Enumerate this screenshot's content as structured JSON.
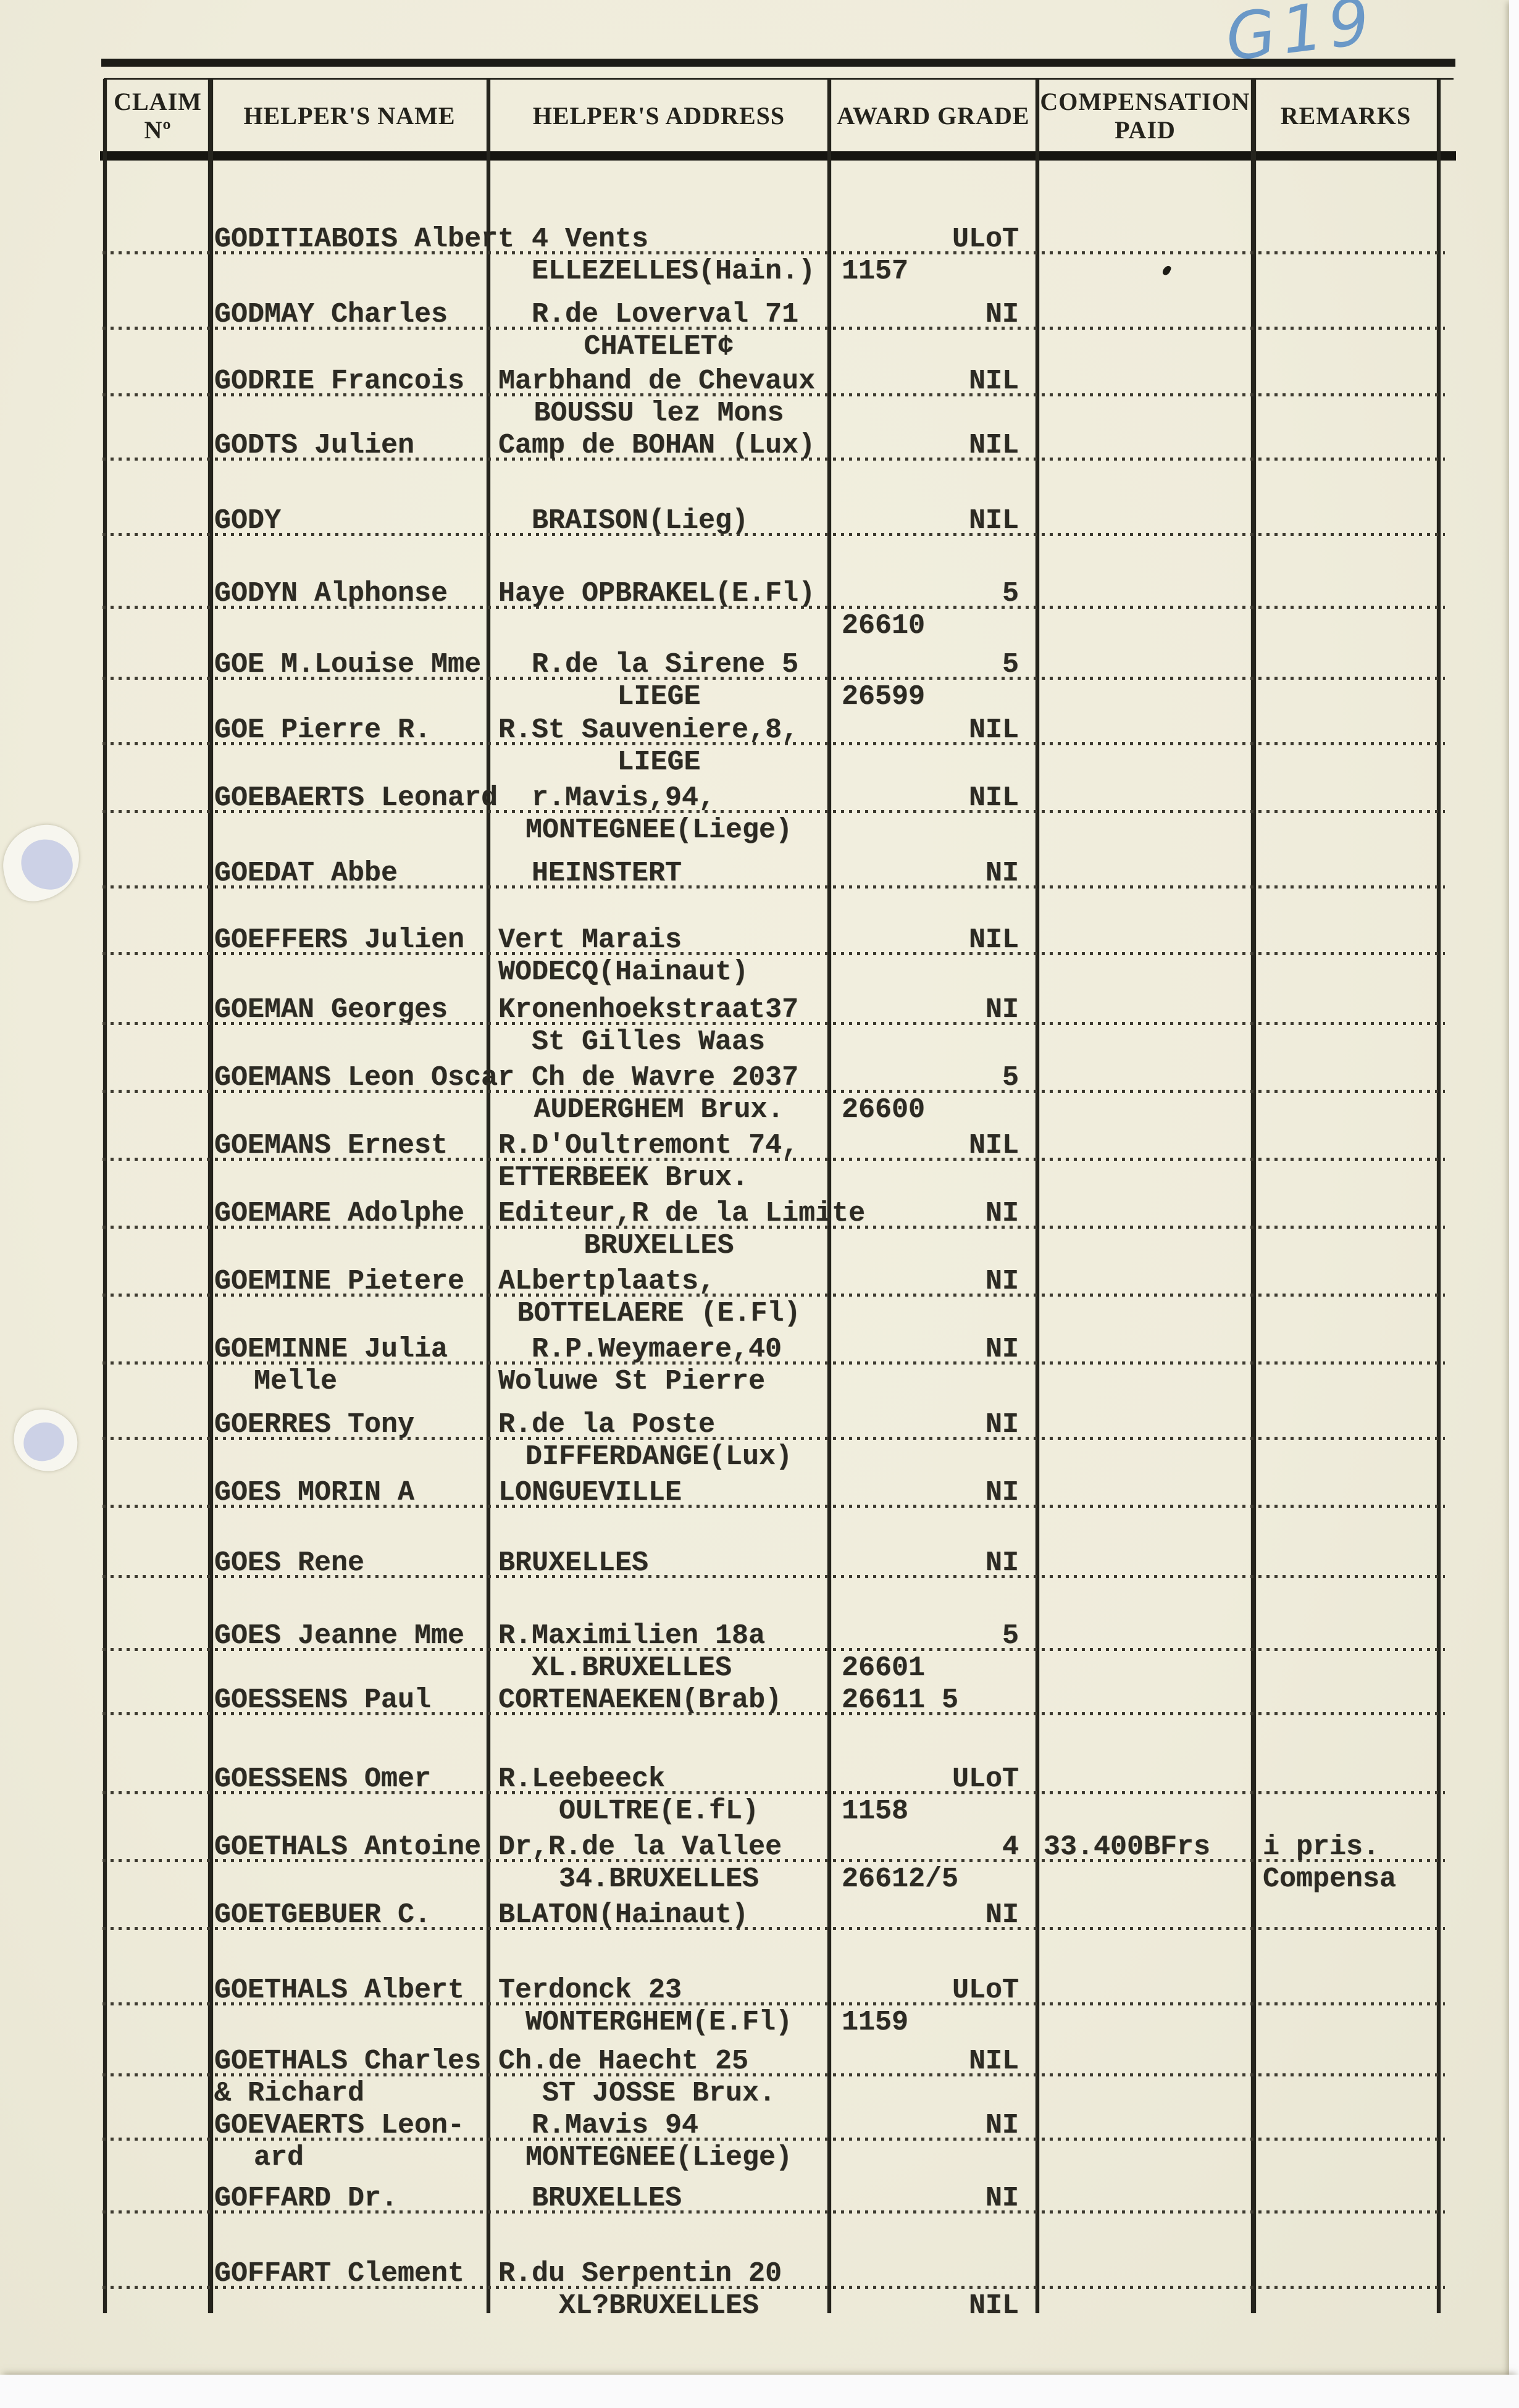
{
  "page": {
    "handwritten_note": "G19"
  },
  "header": {
    "columns": [
      {
        "lines": [
          "CLAIM",
          "Nº"
        ]
      },
      {
        "lines": [
          "HELPER'S NAME"
        ]
      },
      {
        "lines": [
          "HELPER'S ADDRESS"
        ]
      },
      {
        "lines": [
          "AWARD GRADE"
        ]
      },
      {
        "lines": [
          "COMPENSATION",
          "PAID"
        ]
      },
      {
        "lines": [
          "REMARKS"
        ]
      }
    ]
  },
  "table": {
    "rows": [
      {
        "mt": 104,
        "name": [
          {
            "t": "GODITIABOIS Albert",
            "a": "l"
          }
        ],
        "addr": [
          {
            "t": "4 Vents",
            "a": "i"
          },
          {
            "t": "ELLEZELLES(Hain.)",
            "a": "i"
          }
        ],
        "award": [
          {
            "t": "ULoT",
            "a": "r"
          },
          {
            "t": "1157",
            "a": "l"
          }
        ],
        "comp": [],
        "remarks": []
      },
      {
        "mt": 18,
        "name": [
          {
            "t": "GODMAY Charles",
            "a": "l"
          }
        ],
        "addr": [
          {
            "t": "R.de Loverval 71",
            "a": "i"
          },
          {
            "t": "CHATELET¢",
            "a": "c"
          }
        ],
        "award": [
          {
            "t": "NI",
            "a": "r"
          }
        ],
        "comp": [],
        "remarks": []
      },
      {
        "mt": 4,
        "name": [
          {
            "t": "GODRIE Francois",
            "a": "l"
          }
        ],
        "addr": [
          {
            "t": "Marbhand de Chevaux",
            "a": "l"
          },
          {
            "t": "BOUSSU lez Mons",
            "a": "c"
          }
        ],
        "award": [
          {
            "t": "NIL",
            "a": "r"
          }
        ],
        "comp": [],
        "remarks": []
      },
      {
        "mt": 0,
        "name": [
          {
            "t": "GODTS Julien",
            "a": "l"
          }
        ],
        "addr": [
          {
            "t": "Camp de BOHAN (Lux)",
            "a": "l"
          }
        ],
        "award": [
          {
            "t": "NIL",
            "a": "r"
          }
        ],
        "comp": [],
        "remarks": []
      },
      {
        "mt": 70,
        "name": [
          {
            "t": "GODY",
            "a": "l"
          }
        ],
        "addr": [
          {
            "t": "BRAISON(Lieg)",
            "a": "i"
          }
        ],
        "award": [
          {
            "t": "NIL",
            "a": "r"
          }
        ],
        "comp": [],
        "remarks": []
      },
      {
        "mt": 66,
        "name": [
          {
            "t": "GODYN Alphonse",
            "a": "l"
          }
        ],
        "addr": [
          {
            "t": "Haye OPBRAKEL(E.Fl)",
            "a": "l"
          }
        ],
        "award": [
          {
            "t": "5",
            "a": "r"
          },
          {
            "t": "26610",
            "a": "l"
          }
        ],
        "comp": [],
        "remarks": []
      },
      {
        "mt": 11,
        "name": [
          {
            "t": "GOE M.Louise Mme",
            "a": "l"
          }
        ],
        "addr": [
          {
            "t": "R.de la Sirene 5",
            "a": "i"
          },
          {
            "t": "LIEGE",
            "a": "c"
          }
        ],
        "award": [
          {
            "t": "5",
            "a": "r"
          },
          {
            "t": "26599",
            "a": "l"
          }
        ],
        "comp": [],
        "remarks": []
      },
      {
        "mt": 2,
        "name": [
          {
            "t": "GOE Pierre R.",
            "a": "l"
          }
        ],
        "addr": [
          {
            "t": "R.St Sauveniere,8,",
            "a": "l"
          },
          {
            "t": "LIEGE",
            "a": "c"
          }
        ],
        "award": [
          {
            "t": "NIL",
            "a": "r"
          }
        ],
        "comp": [],
        "remarks": []
      },
      {
        "mt": 6,
        "name": [
          {
            "t": "GOEBAERTS Leonard",
            "a": "l"
          }
        ],
        "addr": [
          {
            "t": "r.Mavis,94,",
            "a": "i"
          },
          {
            "t": "MONTEGNEE(Liege)",
            "a": "c"
          }
        ],
        "award": [
          {
            "t": "NIL",
            "a": "r"
          }
        ],
        "comp": [],
        "remarks": []
      },
      {
        "mt": 18,
        "name": [
          {
            "t": "GOEDAT Abbe",
            "a": "l"
          }
        ],
        "addr": [
          {
            "t": "HEINSTERT",
            "a": "i"
          }
        ],
        "award": [
          {
            "t": "NI",
            "a": "r"
          }
        ],
        "comp": [],
        "remarks": []
      },
      {
        "mt": 56,
        "name": [
          {
            "t": "GOEFFERS Julien",
            "a": "l"
          }
        ],
        "addr": [
          {
            "t": "Vert Marais",
            "a": "l"
          },
          {
            "t": "WODECQ(Hainaut)",
            "a": "l"
          }
        ],
        "award": [
          {
            "t": "NIL",
            "a": "r"
          }
        ],
        "comp": [],
        "remarks": []
      },
      {
        "mt": 9,
        "name": [
          {
            "t": "GOEMAN Georges",
            "a": "l"
          }
        ],
        "addr": [
          {
            "t": "Kronenhoekstraat37",
            "a": "l"
          },
          {
            "t": "St Gilles Waas",
            "a": "i"
          }
        ],
        "award": [
          {
            "t": "NI",
            "a": "r"
          }
        ],
        "comp": [],
        "remarks": []
      },
      {
        "mt": 6,
        "name": [
          {
            "t": "GOEMANS Leon Oscar",
            "a": "l"
          }
        ],
        "addr": [
          {
            "t": "Ch de Wavre 2037",
            "a": "i"
          },
          {
            "t": "AUDERGHEM Brux.",
            "a": "c"
          }
        ],
        "award": [
          {
            "t": "5",
            "a": "r"
          },
          {
            "t": "26600",
            "a": "l"
          }
        ],
        "comp": [],
        "remarks": []
      },
      {
        "mt": 6,
        "name": [
          {
            "t": "GOEMANS Ernest",
            "a": "l"
          }
        ],
        "addr": [
          {
            "t": "R.D'Oultremont 74,",
            "a": "l"
          },
          {
            "t": "ETTERBEEK Brux.",
            "a": "l"
          }
        ],
        "award": [
          {
            "t": "NIL",
            "a": "r"
          }
        ],
        "comp": [],
        "remarks": []
      },
      {
        "mt": 6,
        "name": [
          {
            "t": "GOEMARE Adolphe",
            "a": "l"
          }
        ],
        "addr": [
          {
            "t": "Editeur,R de la Limite",
            "a": "l"
          },
          {
            "t": "BRUXELLES",
            "a": "c"
          }
        ],
        "award": [
          {
            "t": "NI",
            "a": "r"
          }
        ],
        "comp": [],
        "remarks": []
      },
      {
        "mt": 6,
        "name": [
          {
            "t": "GOEMINE Pietere",
            "a": "l"
          }
        ],
        "addr": [
          {
            "t": "ALbertplaats,",
            "a": "l"
          },
          {
            "t": "BOTTELAERE (E.Fl)",
            "a": "c"
          }
        ],
        "award": [
          {
            "t": "NI",
            "a": "r"
          }
        ],
        "comp": [],
        "remarks": []
      },
      {
        "mt": 6,
        "name": [
          {
            "t": "GOEMINNE Julia",
            "a": "l"
          },
          {
            "t": "Melle",
            "a": "i"
          }
        ],
        "addr": [
          {
            "t": "R.P.Weymaere,40",
            "a": "i"
          },
          {
            "t": "Woluwe St Pierre",
            "a": "l"
          }
        ],
        "award": [
          {
            "t": "NI",
            "a": "r"
          }
        ],
        "comp": [],
        "remarks": []
      },
      {
        "mt": 18,
        "name": [
          {
            "t": "GOERRES Tony",
            "a": "l"
          }
        ],
        "addr": [
          {
            "t": "R.de la Poste",
            "a": "l"
          },
          {
            "t": "DIFFERDANGE(Lux)",
            "a": "c"
          }
        ],
        "award": [
          {
            "t": "NI",
            "a": "r"
          }
        ],
        "comp": [],
        "remarks": []
      },
      {
        "mt": 6,
        "name": [
          {
            "t": "GOES MORIN A",
            "a": "l"
          }
        ],
        "addr": [
          {
            "t": "LONGUEVILLE",
            "a": "l"
          }
        ],
        "award": [
          {
            "t": "NI",
            "a": "r"
          }
        ],
        "comp": [],
        "remarks": []
      },
      {
        "mt": 62,
        "name": [
          {
            "t": "GOES Rene",
            "a": "l"
          }
        ],
        "addr": [
          {
            "t": "BRUXELLES",
            "a": "l"
          }
        ],
        "award": [
          {
            "t": "NI",
            "a": "r"
          }
        ],
        "comp": [],
        "remarks": []
      },
      {
        "mt": 66,
        "name": [
          {
            "t": "GOES Jeanne Mme",
            "a": "l"
          }
        ],
        "addr": [
          {
            "t": "R.Maximilien 18a",
            "a": "l"
          },
          {
            "t": "XL.BRUXELLES",
            "a": "i"
          }
        ],
        "award": [
          {
            "t": "5",
            "a": "r"
          },
          {
            "t": "26601",
            "a": "l"
          }
        ],
        "comp": [],
        "remarks": []
      },
      {
        "mt": 0,
        "name": [
          {
            "t": "GOESSENS Paul",
            "a": "l"
          }
        ],
        "addr": [
          {
            "t": "CORTENAEKEN(Brab)",
            "a": "l"
          }
        ],
        "award": [
          {
            "t": "26611 5",
            "a": "l"
          }
        ],
        "comp": [],
        "remarks": []
      },
      {
        "mt": 76,
        "name": [
          {
            "t": "GOESSENS Omer",
            "a": "l"
          }
        ],
        "addr": [
          {
            "t": "R.Leebeeck",
            "a": "l"
          },
          {
            "t": "OULTRE(E.fL)",
            "a": "c"
          }
        ],
        "award": [
          {
            "t": "ULoT",
            "a": "r"
          },
          {
            "t": "1158",
            "a": "l"
          }
        ],
        "comp": [],
        "remarks": []
      },
      {
        "mt": 6,
        "name": [
          {
            "t": "GOETHALS Antoine",
            "a": "l"
          }
        ],
        "addr": [
          {
            "t": "Dr,R.de la Vallee",
            "a": "l"
          },
          {
            "t": "34.BRUXELLES",
            "a": "c"
          }
        ],
        "award": [
          {
            "t": "4",
            "a": "r"
          },
          {
            "t": "26612/5",
            "a": "l"
          }
        ],
        "comp": [
          {
            "t": "33.400BFrs",
            "a": "l"
          }
        ],
        "remarks": [
          {
            "t": "i pris.",
            "a": "l"
          },
          {
            "t": "Compensa",
            "a": "l"
          }
        ]
      },
      {
        "mt": 6,
        "name": [
          {
            "t": "GOETGEBUER C.",
            "a": "l"
          }
        ],
        "addr": [
          {
            "t": "BLATON(Hainaut)",
            "a": "l"
          }
        ],
        "award": [
          {
            "t": "NI",
            "a": "r"
          }
        ],
        "comp": [],
        "remarks": []
      },
      {
        "mt": 70,
        "name": [
          {
            "t": "GOETHALS Albert",
            "a": "l"
          }
        ],
        "addr": [
          {
            "t": "Terdonck 23",
            "a": "l"
          },
          {
            "t": "WONTERGHEM(E.Fl)",
            "a": "c"
          }
        ],
        "award": [
          {
            "t": "ULoT",
            "a": "r"
          },
          {
            "t": "1159",
            "a": "l"
          }
        ],
        "comp": [],
        "remarks": []
      },
      {
        "mt": 11,
        "name": [
          {
            "t": "GOETHALS Charles",
            "a": "l"
          },
          {
            "t": "& Richard",
            "a": "l"
          }
        ],
        "addr": [
          {
            "t": "Ch.de Haecht 25",
            "a": "l"
          },
          {
            "t": "ST JOSSE Brux.",
            "a": "c"
          }
        ],
        "award": [
          {
            "t": "NIL",
            "a": "r"
          }
        ],
        "comp": [],
        "remarks": []
      },
      {
        "mt": 0,
        "name": [
          {
            "t": "GOEVAERTS Leon-",
            "a": "l"
          },
          {
            "t": "ard",
            "a": "i"
          }
        ],
        "addr": [
          {
            "t": "R.Mavis 94",
            "a": "i"
          },
          {
            "t": "MONTEGNEE(Liege)",
            "a": "c"
          }
        ],
        "award": [
          {
            "t": "NI",
            "a": "r"
          }
        ],
        "comp": [],
        "remarks": []
      },
      {
        "mt": 14,
        "name": [
          {
            "t": "GOFFARD Dr.",
            "a": "l"
          }
        ],
        "addr": [
          {
            "t": "BRUXELLES",
            "a": "i"
          }
        ],
        "award": [
          {
            "t": "NI",
            "a": "r"
          }
        ],
        "comp": [],
        "remarks": []
      },
      {
        "mt": 70,
        "name": [
          {
            "t": "GOFFART Clement",
            "a": "l"
          }
        ],
        "addr": [
          {
            "t": "R.du Serpentin 20",
            "a": "l"
          },
          {
            "t": "XL?BRUXELLES",
            "a": "c"
          }
        ],
        "award": [
          {
            "t": "",
            "a": "r"
          },
          {
            "t": "NIL",
            "a": "r"
          }
        ],
        "comp": [],
        "remarks": []
      }
    ]
  }
}
